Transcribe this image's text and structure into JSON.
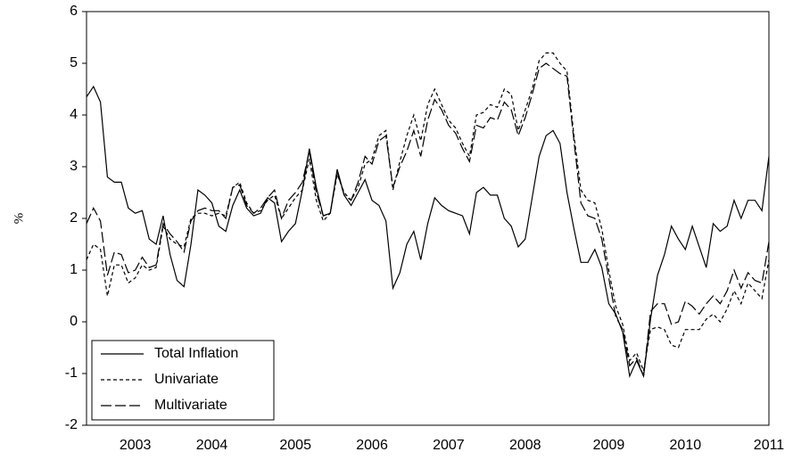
{
  "chart_data": {
    "type": "line",
    "y_label": "%",
    "categories": [
      null,
      null,
      null,
      null,
      null,
      null,
      null,
      "2003",
      null,
      null,
      null,
      null,
      null,
      null,
      null,
      null,
      null,
      null,
      "2004",
      null,
      null,
      null,
      null,
      null,
      null,
      null,
      null,
      null,
      null,
      null,
      "2005",
      null,
      null,
      null,
      null,
      null,
      null,
      null,
      null,
      null,
      null,
      "2006",
      null,
      null,
      null,
      null,
      null,
      null,
      null,
      null,
      null,
      null,
      "2007",
      null,
      null,
      null,
      null,
      null,
      null,
      null,
      null,
      null,
      null,
      "2008",
      null,
      null,
      null,
      null,
      null,
      null,
      null,
      null,
      null,
      null,
      null,
      "2009",
      null,
      null,
      null,
      null,
      null,
      null,
      null,
      null,
      null,
      null,
      "2010",
      null,
      null,
      null,
      null,
      null,
      null,
      null,
      null,
      null,
      null,
      null,
      "2011"
    ],
    "series": [
      {
        "name": "Total Inflation",
        "color": "#000000",
        "dash": "none",
        "values": [
          4.35,
          4.55,
          4.25,
          2.8,
          2.7,
          2.7,
          2.2,
          2.1,
          2.15,
          1.6,
          1.5,
          2.05,
          1.3,
          0.8,
          0.68,
          1.5,
          2.55,
          2.45,
          2.3,
          1.85,
          1.75,
          2.25,
          2.55,
          2.2,
          2.05,
          2.1,
          2.4,
          2.3,
          1.55,
          1.75,
          1.9,
          2.55,
          3.35,
          2.6,
          2.05,
          2.1,
          2.95,
          2.45,
          2.25,
          2.5,
          2.75,
          2.35,
          2.25,
          1.95,
          0.65,
          0.95,
          1.5,
          1.75,
          1.2,
          1.9,
          2.4,
          2.25,
          2.15,
          2.1,
          2.05,
          1.7,
          2.5,
          2.6,
          2.45,
          2.45,
          2.0,
          1.85,
          1.45,
          1.6,
          2.4,
          3.2,
          3.6,
          3.7,
          3.45,
          2.5,
          1.8,
          1.15,
          1.15,
          1.4,
          1.05,
          0.35,
          0.15,
          -0.2,
          -1.05,
          -0.75,
          -1.05,
          0.05,
          0.9,
          1.3,
          1.85,
          1.6,
          1.4,
          1.85,
          1.45,
          1.05,
          1.9,
          1.75,
          1.85,
          2.35,
          2.0,
          2.35,
          2.35,
          2.15,
          3.2
        ]
      },
      {
        "name": "Univariate",
        "color": "#000000",
        "dash": "4 3",
        "values": [
          1.2,
          1.5,
          1.4,
          0.5,
          1.1,
          1.1,
          0.75,
          0.85,
          1.1,
          1.0,
          1.05,
          1.85,
          1.6,
          1.5,
          1.45,
          2.0,
          2.1,
          2.1,
          2.05,
          2.1,
          2.05,
          2.6,
          2.7,
          2.3,
          2.1,
          2.15,
          2.35,
          2.45,
          2.0,
          2.2,
          2.4,
          2.55,
          3.15,
          2.35,
          1.95,
          2.1,
          2.85,
          2.5,
          2.35,
          2.6,
          3.05,
          3.15,
          3.6,
          3.7,
          2.55,
          3.1,
          3.6,
          4.0,
          3.5,
          4.2,
          4.5,
          4.2,
          3.9,
          3.75,
          3.45,
          3.2,
          4.0,
          4.05,
          4.2,
          4.15,
          4.5,
          4.4,
          3.7,
          4.1,
          4.5,
          5.05,
          5.2,
          5.2,
          5.0,
          4.85,
          3.6,
          2.55,
          2.35,
          2.3,
          1.8,
          1.0,
          0.3,
          -0.05,
          -0.75,
          -0.6,
          -0.95,
          -0.15,
          -0.1,
          -0.15,
          -0.45,
          -0.5,
          -0.15,
          -0.15,
          -0.15,
          0.05,
          0.15,
          0.0,
          0.25,
          0.6,
          0.35,
          0.75,
          0.6,
          0.45,
          1.2
        ]
      },
      {
        "name": "Multivariate",
        "color": "#000000",
        "dash": "12 4",
        "values": [
          1.9,
          2.2,
          1.95,
          0.9,
          1.35,
          1.3,
          0.95,
          1.0,
          1.25,
          1.05,
          1.1,
          1.9,
          1.7,
          1.55,
          1.35,
          1.95,
          2.15,
          2.2,
          2.15,
          2.15,
          2.0,
          2.6,
          2.65,
          2.25,
          2.1,
          2.2,
          2.4,
          2.55,
          2.0,
          2.35,
          2.5,
          2.7,
          3.3,
          2.5,
          2.05,
          2.1,
          2.9,
          2.45,
          2.35,
          2.7,
          3.2,
          3.05,
          3.5,
          3.6,
          2.6,
          3.0,
          3.3,
          3.7,
          3.2,
          3.9,
          4.3,
          4.1,
          3.8,
          3.65,
          3.35,
          3.1,
          3.8,
          3.75,
          3.95,
          3.9,
          4.25,
          4.1,
          3.6,
          3.95,
          4.4,
          4.9,
          5.0,
          4.9,
          4.8,
          4.75,
          3.5,
          2.3,
          2.05,
          2.0,
          1.6,
          0.85,
          0.1,
          -0.15,
          -0.85,
          -0.7,
          -1.05,
          0.2,
          0.35,
          0.35,
          -0.05,
          0.0,
          0.4,
          0.3,
          0.15,
          0.35,
          0.5,
          0.35,
          0.6,
          1.0,
          0.65,
          0.95,
          0.8,
          0.75,
          1.55
        ]
      }
    ],
    "ylim": [
      -2,
      6
    ],
    "yticks": [
      -2,
      -1,
      0,
      1,
      2,
      3,
      4,
      5,
      6
    ],
    "grid": false,
    "legend": "lower left"
  }
}
